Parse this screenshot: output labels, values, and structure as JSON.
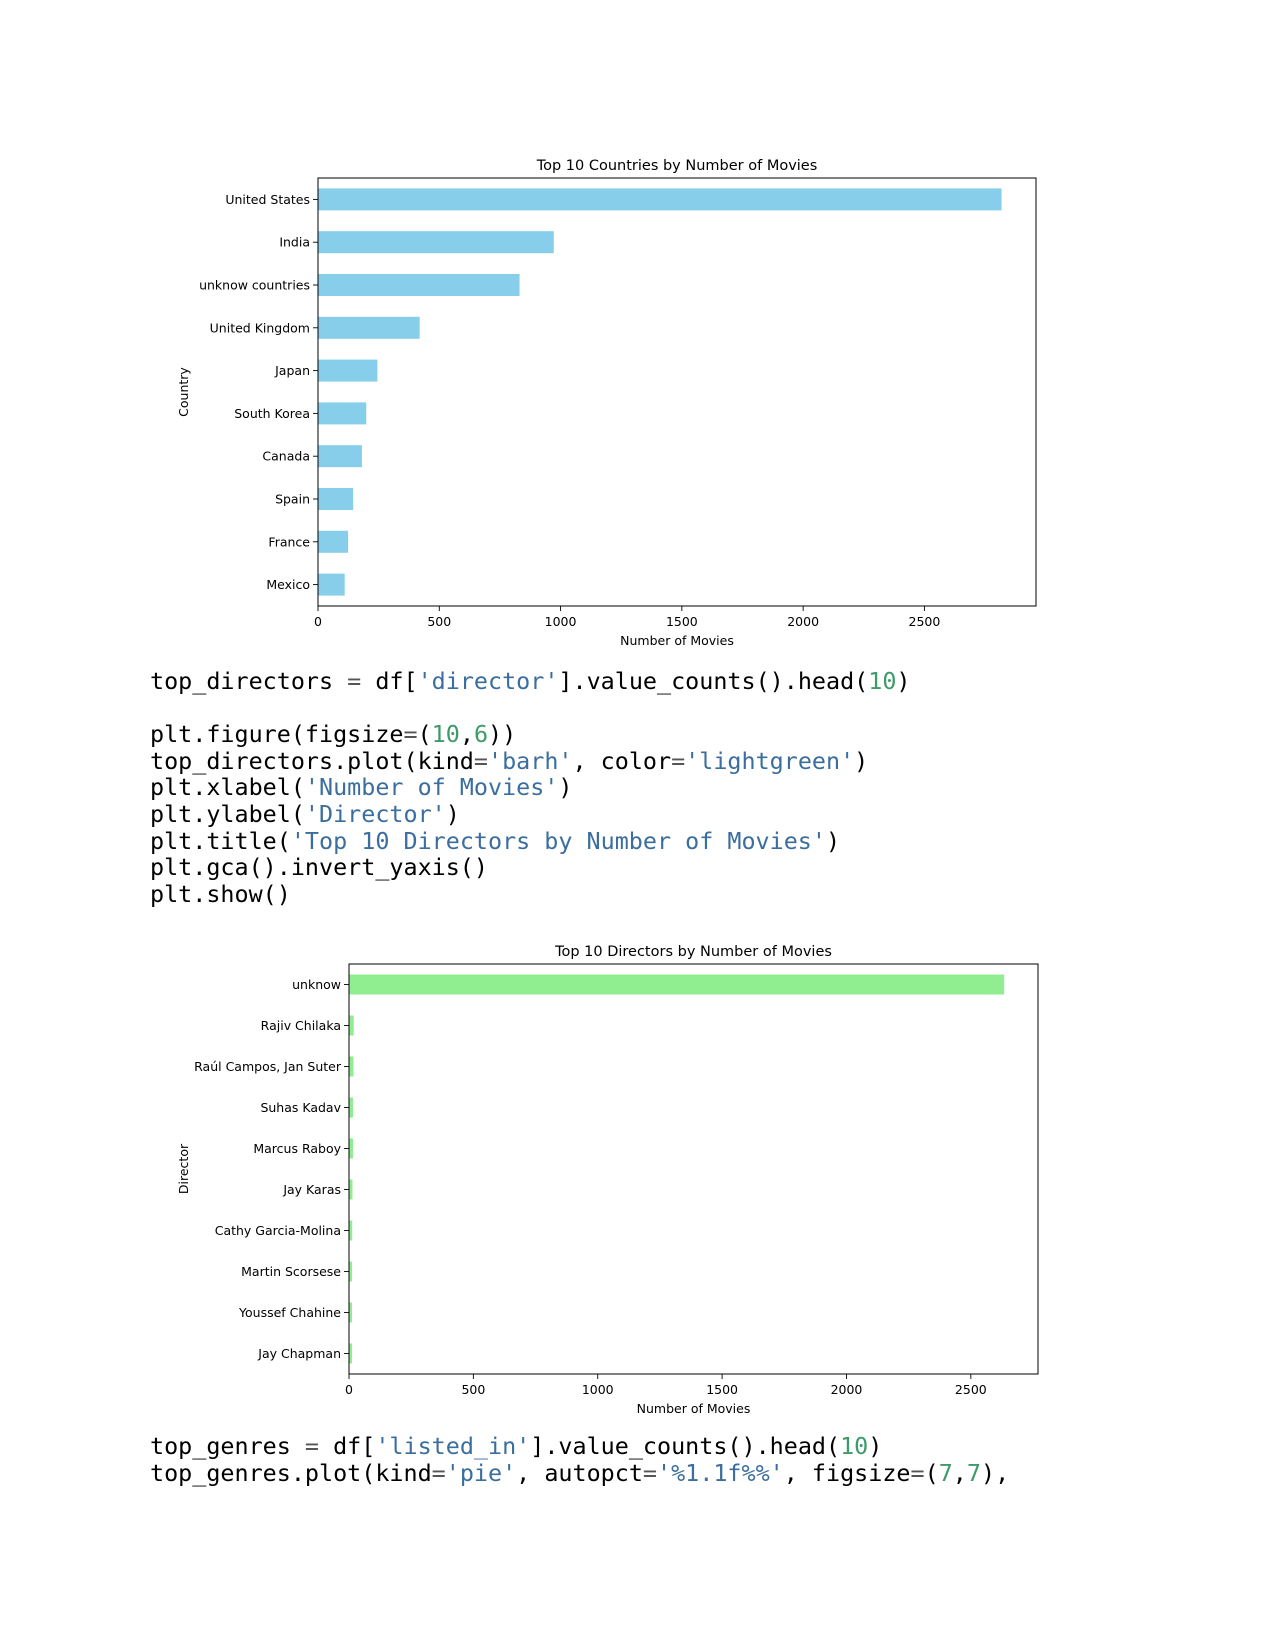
{
  "chart_data": [
    {
      "type": "bar",
      "orientation": "horizontal",
      "title": "Top 10 Countries by Number of Movies",
      "xlabel": "Number of Movies",
      "ylabel": "Country",
      "categories": [
        "United States",
        "India",
        "unknow countries",
        "United Kingdom",
        "Japan",
        "South Korea",
        "Canada",
        "Spain",
        "France",
        "Mexico"
      ],
      "values": [
        2818,
        972,
        831,
        419,
        245,
        199,
        181,
        145,
        124,
        110
      ],
      "xlim": [
        0,
        2960
      ],
      "xticks": [
        0,
        500,
        1000,
        1500,
        2000,
        2500
      ],
      "color": "#87ceeb",
      "grid": false
    },
    {
      "type": "bar",
      "orientation": "horizontal",
      "title": "Top 10 Directors by Number of Movies",
      "xlabel": "Number of Movies",
      "ylabel": "Director",
      "categories": [
        "unknow",
        "Rajiv Chilaka",
        "Raúl Campos, Jan Suter",
        "Suhas Kadav",
        "Marcus Raboy",
        "Jay Karas",
        "Cathy Garcia-Molina",
        "Martin Scorsese",
        "Youssef Chahine",
        "Jay Chapman"
      ],
      "values": [
        2634,
        19,
        18,
        16,
        16,
        14,
        13,
        12,
        12,
        12
      ],
      "xlim": [
        0,
        2770
      ],
      "xticks": [
        0,
        500,
        1000,
        1500,
        2000,
        2500
      ],
      "color": "#90ee90",
      "grid": false
    }
  ],
  "code_blocks": [
    {
      "lines": [
        [
          [
            "id",
            "top_directors "
          ],
          [
            "op",
            "="
          ],
          [
            "id",
            " df["
          ],
          [
            "str",
            "'director'"
          ],
          [
            "id",
            "].value_counts().head("
          ],
          [
            "num",
            "10"
          ],
          [
            "id",
            ")"
          ]
        ],
        [],
        [
          [
            "id",
            "plt.figure(figsize"
          ],
          [
            "op",
            "="
          ],
          [
            "id",
            "("
          ],
          [
            "num",
            "10"
          ],
          [
            "id",
            ","
          ],
          [
            "num",
            "6"
          ],
          [
            "id",
            "))"
          ]
        ],
        [
          [
            "id",
            "top_directors.plot(kind"
          ],
          [
            "op",
            "="
          ],
          [
            "str",
            "'barh'"
          ],
          [
            "id",
            ", color"
          ],
          [
            "op",
            "="
          ],
          [
            "str",
            "'lightgreen'"
          ],
          [
            "id",
            ")"
          ]
        ],
        [
          [
            "id",
            "plt.xlabel("
          ],
          [
            "str",
            "'Number of Movies'"
          ],
          [
            "id",
            ")"
          ]
        ],
        [
          [
            "id",
            "plt.ylabel("
          ],
          [
            "str",
            "'Director'"
          ],
          [
            "id",
            ")"
          ]
        ],
        [
          [
            "id",
            "plt.title("
          ],
          [
            "str",
            "'Top 10 Directors by Number of Movies'"
          ],
          [
            "id",
            ")"
          ]
        ],
        [
          [
            "id",
            "plt.gca().invert_yaxis()"
          ]
        ],
        [
          [
            "id",
            "plt.show()"
          ]
        ]
      ]
    },
    {
      "lines": [
        [
          [
            "id",
            "top_genres "
          ],
          [
            "op",
            "="
          ],
          [
            "id",
            " df["
          ],
          [
            "str",
            "'listed_in'"
          ],
          [
            "id",
            "].value_counts().head("
          ],
          [
            "num",
            "10"
          ],
          [
            "id",
            ")"
          ]
        ],
        [
          [
            "id",
            "top_genres.plot(kind"
          ],
          [
            "op",
            "="
          ],
          [
            "str",
            "'pie'"
          ],
          [
            "id",
            ", autopct"
          ],
          [
            "op",
            "="
          ],
          [
            "str",
            "'%1.1f%%'"
          ],
          [
            "id",
            ", figsize"
          ],
          [
            "op",
            "="
          ],
          [
            "id",
            "("
          ],
          [
            "num",
            "7"
          ],
          [
            "id",
            ","
          ],
          [
            "num",
            "7"
          ],
          [
            "id",
            "),"
          ]
        ]
      ]
    }
  ]
}
